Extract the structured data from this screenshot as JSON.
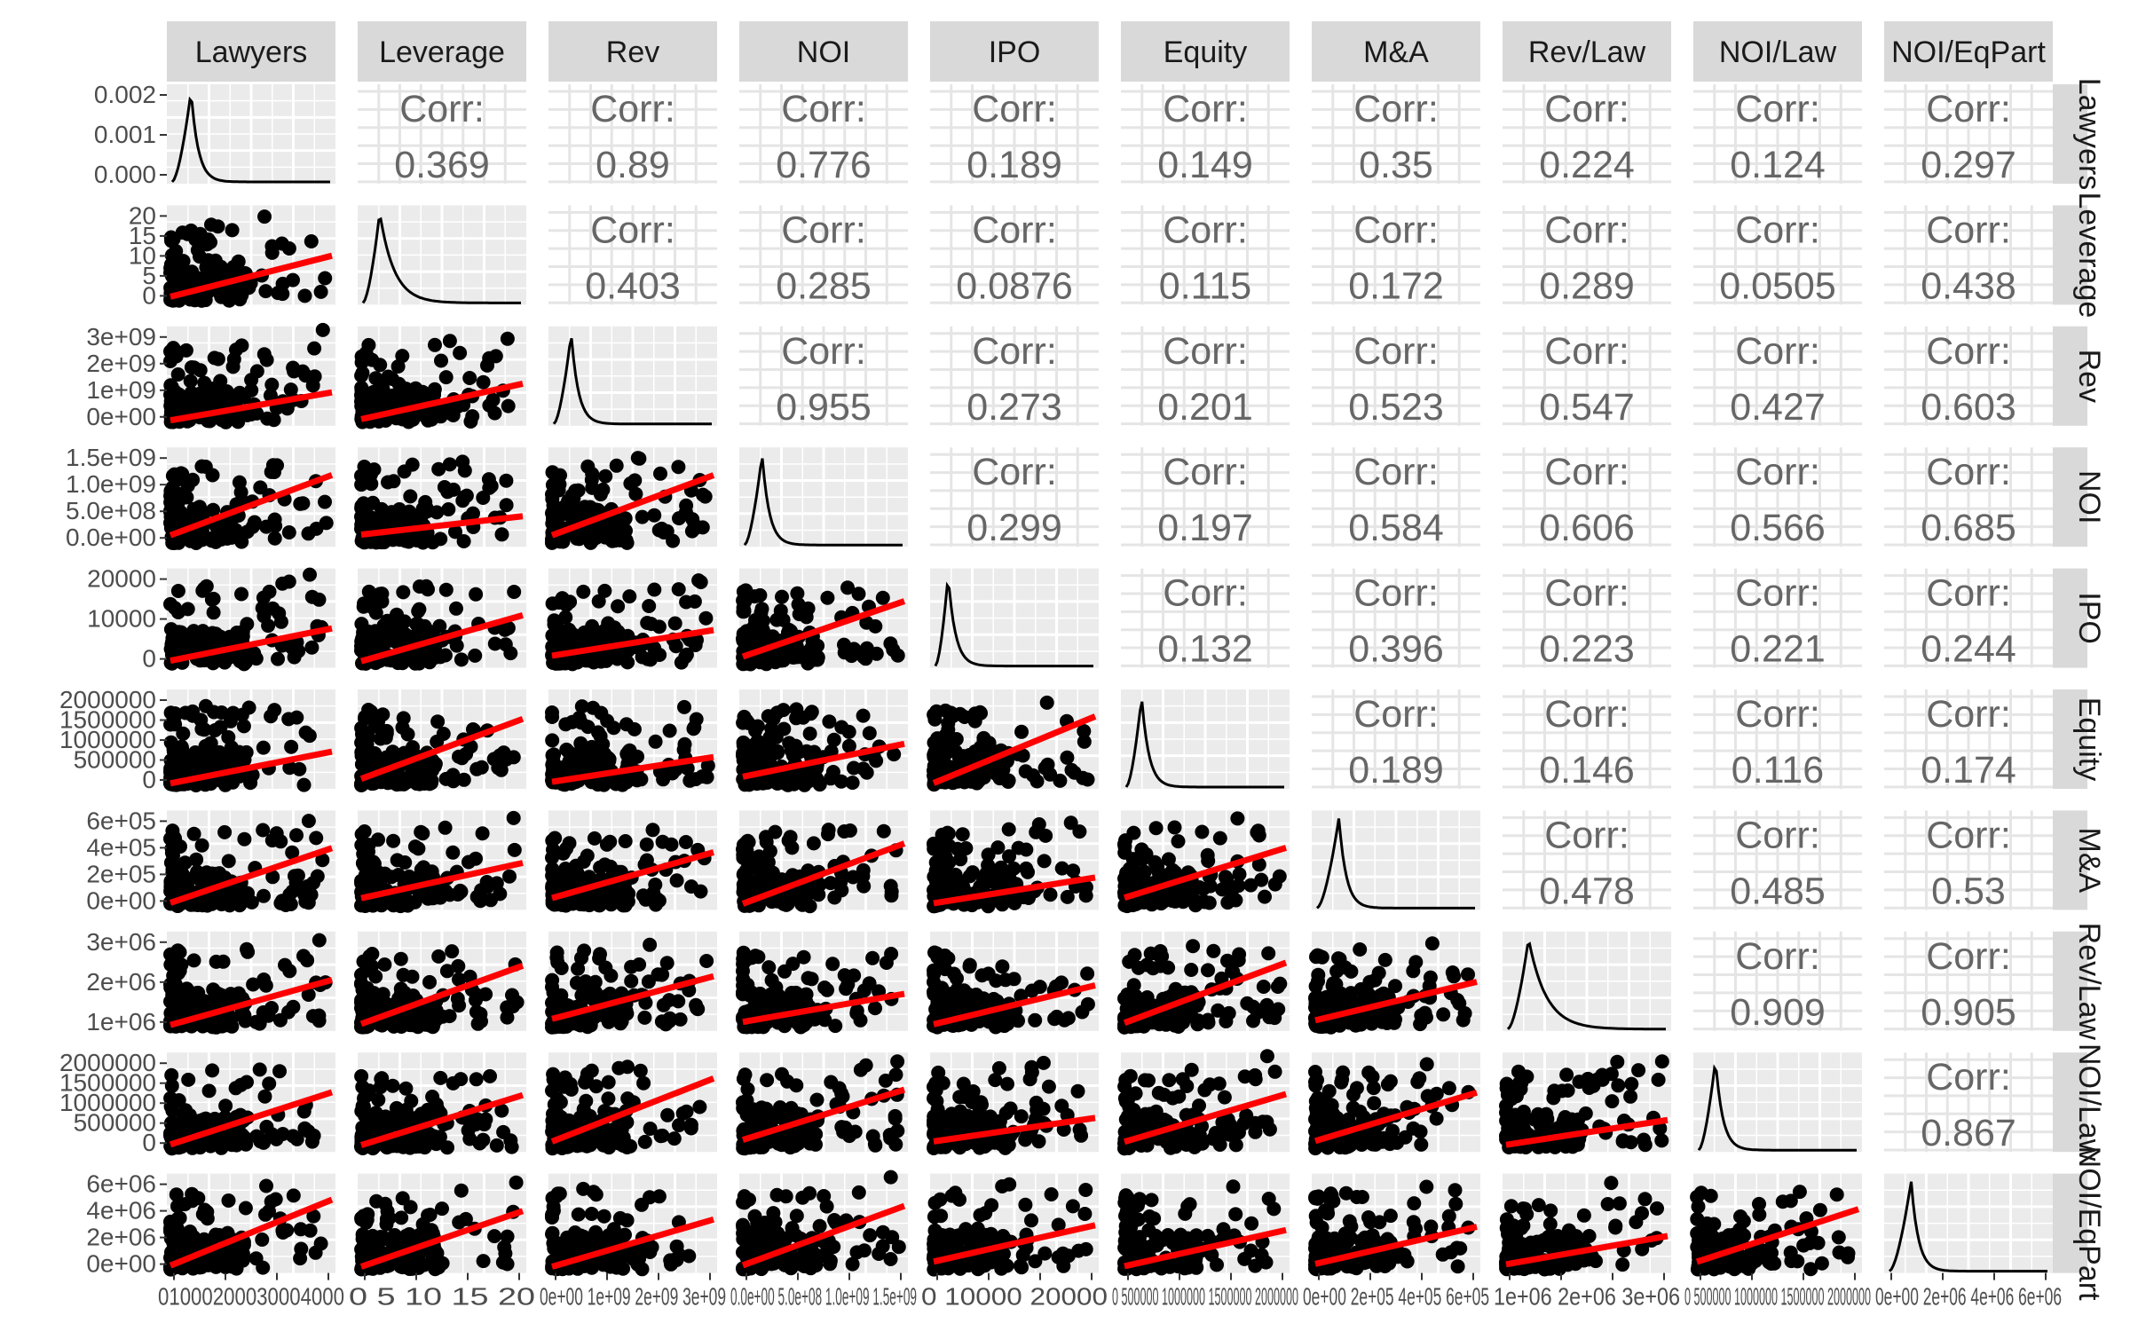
{
  "chart_data": {
    "type": "scatter",
    "subtype": "pairs-matrix",
    "variables": [
      "Lawyers",
      "Leverage",
      "Rev",
      "NOI",
      "IPO",
      "Equity",
      "M&A",
      "Rev/Law",
      "NOI/Law",
      "NOI/EqPart"
    ],
    "strip_labels_right": [
      "Lawyers",
      "Leverage",
      "Rev",
      "NOI",
      "IPO",
      "Equity",
      "M&A",
      "Rev/Law",
      "NOI/Law",
      "NOI/EqPart"
    ],
    "corr_label": "Corr:",
    "correlations": [
      {
        "row": 0,
        "col": 1,
        "value": "0.369"
      },
      {
        "row": 0,
        "col": 2,
        "value": "0.89"
      },
      {
        "row": 0,
        "col": 3,
        "value": "0.776"
      },
      {
        "row": 0,
        "col": 4,
        "value": "0.189"
      },
      {
        "row": 0,
        "col": 5,
        "value": "0.149"
      },
      {
        "row": 0,
        "col": 6,
        "value": "0.35"
      },
      {
        "row": 0,
        "col": 7,
        "value": "0.224"
      },
      {
        "row": 0,
        "col": 8,
        "value": "0.124"
      },
      {
        "row": 0,
        "col": 9,
        "value": "0.297"
      },
      {
        "row": 1,
        "col": 2,
        "value": "0.403"
      },
      {
        "row": 1,
        "col": 3,
        "value": "0.285"
      },
      {
        "row": 1,
        "col": 4,
        "value": "0.0876"
      },
      {
        "row": 1,
        "col": 5,
        "value": "0.115"
      },
      {
        "row": 1,
        "col": 6,
        "value": "0.172"
      },
      {
        "row": 1,
        "col": 7,
        "value": "0.289"
      },
      {
        "row": 1,
        "col": 8,
        "value": "0.0505"
      },
      {
        "row": 1,
        "col": 9,
        "value": "0.438"
      },
      {
        "row": 2,
        "col": 3,
        "value": "0.955"
      },
      {
        "row": 2,
        "col": 4,
        "value": "0.273"
      },
      {
        "row": 2,
        "col": 5,
        "value": "0.201"
      },
      {
        "row": 2,
        "col": 6,
        "value": "0.523"
      },
      {
        "row": 2,
        "col": 7,
        "value": "0.547"
      },
      {
        "row": 2,
        "col": 8,
        "value": "0.427"
      },
      {
        "row": 2,
        "col": 9,
        "value": "0.603"
      },
      {
        "row": 3,
        "col": 4,
        "value": "0.299"
      },
      {
        "row": 3,
        "col": 5,
        "value": "0.197"
      },
      {
        "row": 3,
        "col": 6,
        "value": "0.584"
      },
      {
        "row": 3,
        "col": 7,
        "value": "0.606"
      },
      {
        "row": 3,
        "col": 8,
        "value": "0.566"
      },
      {
        "row": 3,
        "col": 9,
        "value": "0.685"
      },
      {
        "row": 4,
        "col": 5,
        "value": "0.132"
      },
      {
        "row": 4,
        "col": 6,
        "value": "0.396"
      },
      {
        "row": 4,
        "col": 7,
        "value": "0.223"
      },
      {
        "row": 4,
        "col": 8,
        "value": "0.221"
      },
      {
        "row": 4,
        "col": 9,
        "value": "0.244"
      },
      {
        "row": 5,
        "col": 6,
        "value": "0.189"
      },
      {
        "row": 5,
        "col": 7,
        "value": "0.146"
      },
      {
        "row": 5,
        "col": 8,
        "value": "0.116"
      },
      {
        "row": 5,
        "col": 9,
        "value": "0.174"
      },
      {
        "row": 6,
        "col": 7,
        "value": "0.478"
      },
      {
        "row": 6,
        "col": 8,
        "value": "0.485"
      },
      {
        "row": 6,
        "col": 9,
        "value": "0.53"
      },
      {
        "row": 7,
        "col": 8,
        "value": "0.909"
      },
      {
        "row": 7,
        "col": 9,
        "value": "0.905"
      },
      {
        "row": 8,
        "col": 9,
        "value": "0.867"
      }
    ],
    "y_tick_labels": [
      [
        "0.000",
        "0.001",
        "0.002"
      ],
      [
        "0",
        "5",
        "10",
        "15",
        "20"
      ],
      [
        "0e+00",
        "1e+09",
        "2e+09",
        "3e+09"
      ],
      [
        "0.0e+00",
        "5.0e+08",
        "1.0e+09",
        "1.5e+09"
      ],
      [
        "0",
        "10000",
        "20000"
      ],
      [
        "0",
        "500000",
        "1000000",
        "1500000",
        "2000000"
      ],
      [
        "0e+00",
        "2e+05",
        "4e+05",
        "6e+05"
      ],
      [
        "1e+06",
        "2e+06",
        "3e+06"
      ],
      [
        "0",
        "500000",
        "1000000",
        "1500000",
        "2000000"
      ],
      [
        "0e+00",
        "2e+06",
        "4e+06",
        "6e+06"
      ]
    ],
    "x_tick_labels_text": [
      "01000200030004000",
      "0 5 10 15 20",
      "0e+00 1e+09 2e+09 3e+09",
      "0.0e+00 5.0e+08 1.0e+09 1.5e+09",
      "0 10000 20000",
      "0 500000 1000000 1500000 2000000",
      "0e+00 2e+05 4e+05 6e+05",
      "1e+06 2e+06 3e+06",
      "0 500000 1000000 1500000 2000000",
      "0e+00 2e+06 4e+06 6e+06"
    ],
    "grid": true,
    "background": "#ebebeb",
    "strip_color": "#d9d9d9",
    "point_color": "#000000",
    "fit_line_color": "#ff0000",
    "density_line_color": "#000000"
  }
}
